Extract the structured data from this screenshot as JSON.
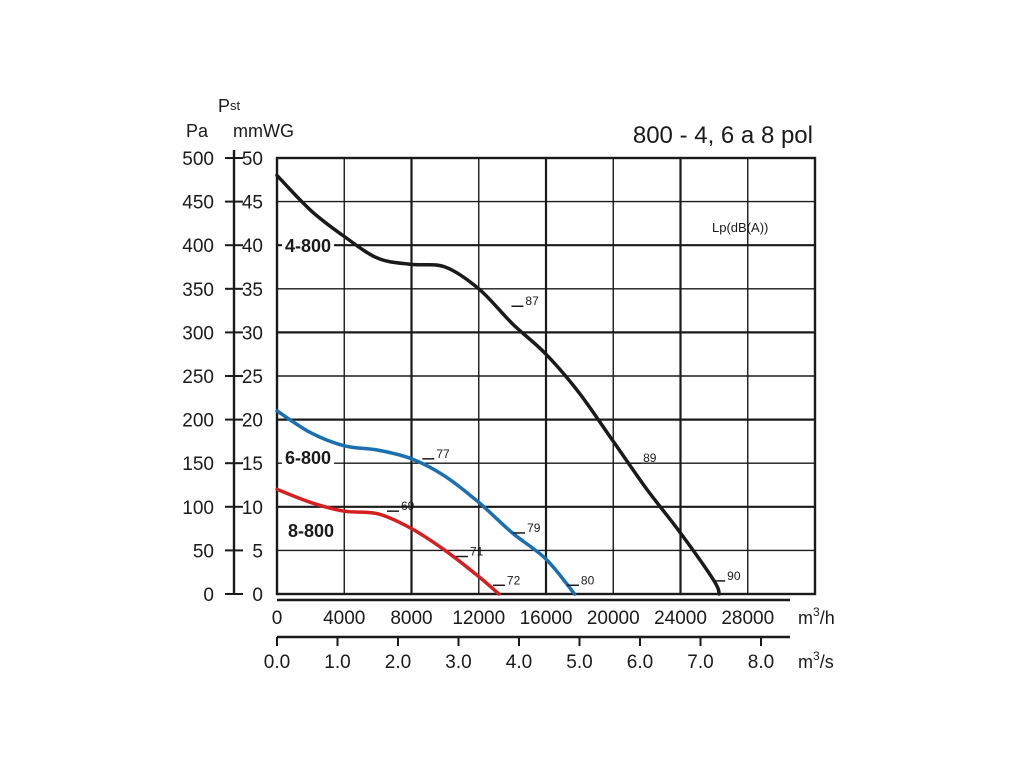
{
  "chart_data": {
    "type": "line",
    "title": "800 - 4, 6 a 8 pol",
    "ylabel_symbol": "P",
    "ylabel_sub": "st",
    "yleft_unit": "Pa",
    "yright_unit": "mmWG",
    "x1_unit_base": "m",
    "x1_unit_exp": "3",
    "x1_unit_tail": "/h",
    "x2_unit_base": "m",
    "x2_unit_exp": "3",
    "x2_unit_tail": "/s",
    "noise_label": "Lp(dB(A))",
    "grid": true,
    "xlim": [
      0,
      32000
    ],
    "ylim": [
      0,
      50
    ],
    "x_pressure_pa_ticks": [
      "0",
      "50",
      "100",
      "150",
      "200",
      "250",
      "300",
      "350",
      "400",
      "450",
      "500"
    ],
    "y_mmwg_ticks": [
      "0",
      "5",
      "10",
      "15",
      "20",
      "25",
      "30",
      "35",
      "40",
      "45",
      "50"
    ],
    "x_m3h_ticks": [
      "0",
      "4000",
      "8000",
      "12000",
      "16000",
      "20000",
      "24000",
      "28000"
    ],
    "x_m3s_ticks": [
      "0.0",
      "1.0",
      "2.0",
      "3.0",
      "4.0",
      "5.0",
      "6.0",
      "7.0",
      "8.0"
    ],
    "series": [
      {
        "name": "4-800",
        "color": "#1a1a1a",
        "x": [
          0,
          2000,
          4000,
          6000,
          8000,
          10000,
          12000,
          14000,
          16000,
          18000,
          20000,
          22000,
          24000,
          26000,
          26300
        ],
        "y": [
          48,
          44,
          41,
          38.5,
          37.8,
          37.5,
          35,
          31,
          27.5,
          23,
          17.5,
          12,
          7,
          1.5,
          0
        ],
        "markers": [
          {
            "x": 14300,
            "y": 33,
            "label": "87"
          },
          {
            "x": 21300,
            "y": 15,
            "label": "89"
          },
          {
            "x": 26300,
            "y": 1.5,
            "label": "90"
          }
        ]
      },
      {
        "name": "6-800",
        "color": "#1a6fb0",
        "x": [
          0,
          2000,
          4000,
          6000,
          8000,
          10000,
          12000,
          14000,
          16000,
          17700
        ],
        "y": [
          21,
          18.5,
          17,
          16.5,
          15.5,
          13.5,
          10.5,
          7,
          4,
          0
        ],
        "markers": [
          {
            "x": 9000,
            "y": 15.5,
            "label": "77"
          },
          {
            "x": 14400,
            "y": 7,
            "label": "79"
          },
          {
            "x": 17600,
            "y": 1,
            "label": "80"
          }
        ]
      },
      {
        "name": "8-800",
        "color": "#d42020",
        "x": [
          0,
          2000,
          4000,
          6000,
          8000,
          10000,
          12000,
          13200
        ],
        "y": [
          12,
          10.5,
          9.5,
          9.2,
          7.5,
          5,
          2,
          0
        ],
        "markers": [
          {
            "x": 6900,
            "y": 9.5,
            "label": "69"
          },
          {
            "x": 11000,
            "y": 4.3,
            "label": "71"
          },
          {
            "x": 13200,
            "y": 1,
            "label": "72"
          }
        ]
      }
    ]
  }
}
